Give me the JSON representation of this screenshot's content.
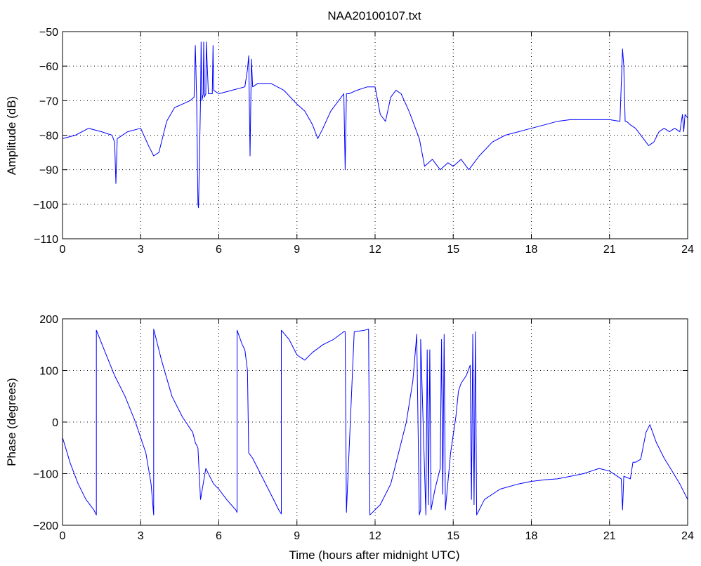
{
  "figure": {
    "background": "#ffffff",
    "line_color": "#0000ff",
    "axes_color": "#000000",
    "grid_color": "#000000"
  },
  "chart_data": [
    {
      "type": "line",
      "title": "NAA20100107.txt",
      "xlabel": "",
      "ylabel": "Amplitude (dB)",
      "xlim": [
        0,
        24
      ],
      "ylim": [
        -110,
        -50
      ],
      "xticks": [
        0,
        3,
        6,
        9,
        12,
        15,
        18,
        21,
        24
      ],
      "yticks": [
        -110,
        -100,
        -90,
        -80,
        -70,
        -60,
        -50
      ],
      "grid": true,
      "series": [
        {
          "color": "#0000ff",
          "x": [
            0,
            0.5,
            1.0,
            1.5,
            1.9,
            2.0,
            2.05,
            2.1,
            2.5,
            3.0,
            3.3,
            3.5,
            3.7,
            4.0,
            4.3,
            4.6,
            4.9,
            5.05,
            5.1,
            5.15,
            5.2,
            5.22,
            5.3,
            5.32,
            5.35,
            5.4,
            5.42,
            5.45,
            5.5,
            5.52,
            5.6,
            5.75,
            5.78,
            5.8,
            6.0,
            6.5,
            7.0,
            7.1,
            7.15,
            7.2,
            7.25,
            7.3,
            7.5,
            8.0,
            8.5,
            9.0,
            9.3,
            9.6,
            9.8,
            10.0,
            10.3,
            10.6,
            10.8,
            10.85,
            10.9,
            11.0,
            11.3,
            11.7,
            12.0,
            12.2,
            12.4,
            12.6,
            12.8,
            13.0,
            13.3,
            13.7,
            13.9,
            14.2,
            14.5,
            14.8,
            15.0,
            15.3,
            15.6,
            15.8,
            16.0,
            16.5,
            17.0,
            17.5,
            18.0,
            18.5,
            19.0,
            19.5,
            20.0,
            20.5,
            21.0,
            21.4,
            21.5,
            21.55,
            21.6,
            21.65,
            21.8,
            22.0,
            22.3,
            22.5,
            22.7,
            22.9,
            23.1,
            23.3,
            23.5,
            23.7,
            23.8,
            23.85,
            23.9,
            24.0
          ],
          "y": [
            -81,
            -80,
            -78,
            -79,
            -80,
            -82,
            -94,
            -81,
            -79,
            -78,
            -83,
            -86,
            -85,
            -76,
            -72,
            -71,
            -70,
            -69,
            -54,
            -70,
            -100,
            -101,
            -70,
            -53,
            -70,
            -68,
            -53,
            -69,
            -68,
            -53,
            -68,
            -68,
            -54,
            -67,
            -68,
            -67,
            -66,
            -61,
            -57,
            -86,
            -58,
            -66,
            -65,
            -65,
            -67,
            -71,
            -73,
            -77,
            -81,
            -78,
            -73,
            -70,
            -68,
            -90,
            -68,
            -68,
            -67,
            -66,
            -66,
            -74,
            -76,
            -69,
            -67,
            -68,
            -73,
            -81,
            -89,
            -87,
            -90,
            -88,
            -89,
            -87,
            -90,
            -88,
            -86,
            -82,
            -80,
            -79,
            -78,
            -77,
            -76,
            -75.5,
            -75.5,
            -75.5,
            -75.5,
            -76,
            -55,
            -60,
            -76,
            -76,
            -77,
            -78,
            -81,
            -83,
            -82,
            -79,
            -78,
            -79,
            -78,
            -79,
            -74,
            -79,
            -74,
            -75
          ]
        }
      ]
    },
    {
      "type": "line",
      "title": "",
      "xlabel": "Time (hours after midnight UTC)",
      "ylabel": "Phase (degrees)",
      "xlim": [
        0,
        24
      ],
      "ylim": [
        -200,
        200
      ],
      "xticks": [
        0,
        3,
        6,
        9,
        12,
        15,
        18,
        21,
        24
      ],
      "yticks": [
        -200,
        -100,
        0,
        100,
        200
      ],
      "grid": true,
      "series": [
        {
          "color": "#0000ff",
          "x": [
            0,
            0.3,
            0.6,
            0.9,
            1.2,
            1.3,
            1.3,
            1.6,
            2.0,
            2.4,
            2.8,
            3.2,
            3.4,
            3.5,
            3.5,
            3.8,
            4.2,
            4.6,
            5.0,
            5.1,
            5.2,
            5.3,
            5.5,
            5.8,
            6.0,
            6.3,
            6.65,
            6.7,
            6.7,
            6.9,
            7.0,
            7.1,
            7.15,
            7.3,
            7.6,
            8.0,
            8.3,
            8.4,
            8.4,
            8.7,
            9.0,
            9.3,
            9.6,
            10.0,
            10.4,
            10.8,
            10.85,
            10.9,
            11.2,
            11.6,
            11.75,
            11.8,
            11.8,
            12.2,
            12.6,
            12.9,
            13.2,
            13.45,
            13.6,
            13.7,
            13.75,
            13.75,
            13.95,
            14.0,
            14.05,
            14.1,
            14.15,
            14.3,
            14.5,
            14.55,
            14.6,
            14.65,
            14.7,
            14.9,
            15.1,
            15.2,
            15.3,
            15.5,
            15.65,
            15.7,
            15.75,
            15.8,
            15.85,
            15.9,
            16.2,
            16.8,
            17.5,
            18.0,
            18.5,
            19.0,
            19.5,
            20.0,
            20.3,
            20.6,
            21.0,
            21.3,
            21.45,
            21.5,
            21.55,
            21.8,
            21.9,
            22.0,
            22.2,
            22.4,
            22.55,
            22.8,
            23.1,
            23.4,
            23.7,
            24.0
          ],
          "y": [
            -30,
            -80,
            -120,
            -150,
            -170,
            -180,
            178,
            140,
            90,
            50,
            0,
            -60,
            -120,
            -180,
            180,
            120,
            50,
            10,
            -20,
            -40,
            -50,
            -150,
            -90,
            -120,
            -130,
            -150,
            -170,
            -175,
            178,
            150,
            140,
            100,
            -60,
            -70,
            -100,
            -140,
            -170,
            -178,
            178,
            160,
            130,
            120,
            135,
            150,
            160,
            175,
            175,
            -175,
            175,
            178,
            180,
            -178,
            -180,
            -160,
            -120,
            -60,
            0,
            80,
            170,
            -180,
            -170,
            160,
            -180,
            140,
            -160,
            140,
            -170,
            -130,
            -90,
            160,
            -140,
            170,
            -170,
            -60,
            10,
            60,
            75,
            90,
            110,
            -150,
            170,
            -160,
            175,
            -180,
            -150,
            -130,
            -120,
            -115,
            -112,
            -110,
            -105,
            -100,
            -95,
            -90,
            -95,
            -105,
            -110,
            -170,
            -105,
            -110,
            -78,
            -78,
            -72,
            -20,
            -5,
            -40,
            -70,
            -95,
            -120,
            -150
          ]
        }
      ]
    }
  ]
}
